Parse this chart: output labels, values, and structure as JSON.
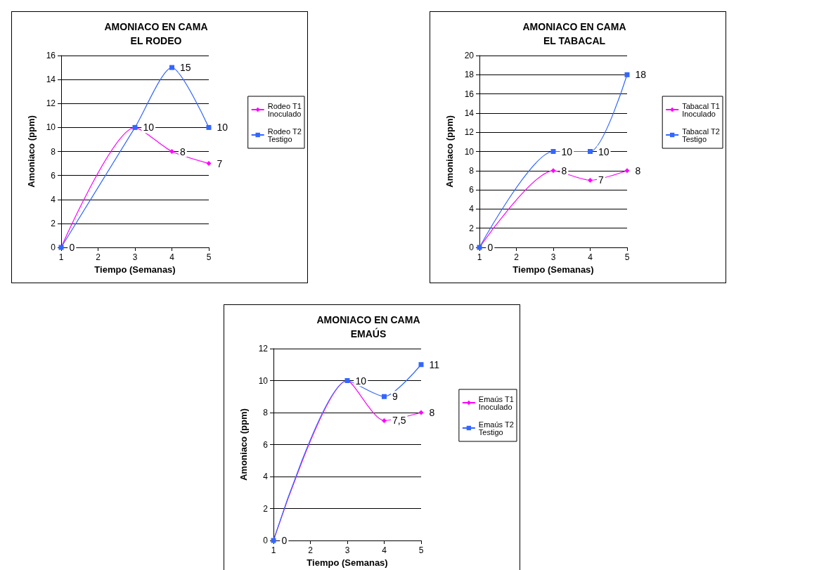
{
  "chart_data": [
    {
      "type": "line",
      "title": "AMONIACO EN CAMA\nEL RODEO",
      "xlabel": "Tiempo (Semanas)",
      "ylabel": "Amoniaco (ppm)",
      "xlim": [
        1,
        5
      ],
      "xticks": [
        1,
        2,
        3,
        4,
        5
      ],
      "ylim": [
        0,
        16
      ],
      "yticks": [
        0,
        2,
        4,
        6,
        8,
        10,
        12,
        14,
        16
      ],
      "grid": "y",
      "legend": "right",
      "series": [
        {
          "name": "Rodeo T1\nInoculado",
          "color": "#ff00ff",
          "marker": "diamond",
          "x": [
            1,
            3,
            4,
            5
          ],
          "values": [
            0,
            10,
            8,
            7
          ],
          "value_labels": [
            null,
            null,
            "8",
            "7"
          ]
        },
        {
          "name": "Rodeo T2\nTestigo",
          "color": "#3366ff",
          "marker": "square",
          "x": [
            1,
            3,
            4,
            5
          ],
          "values": [
            0,
            10,
            15,
            10
          ],
          "value_labels": [
            "0",
            "10",
            "15",
            "10"
          ]
        }
      ]
    },
    {
      "type": "line",
      "title": "AMONIACO EN CAMA\nEL TABACAL",
      "xlabel": "Tiempo (Semanas)",
      "ylabel": "Amoniaco (ppm)",
      "xlim": [
        1,
        5
      ],
      "xticks": [
        1,
        2,
        3,
        4,
        5
      ],
      "ylim": [
        0,
        20
      ],
      "yticks": [
        0,
        2,
        4,
        6,
        8,
        10,
        12,
        14,
        16,
        18,
        20
      ],
      "grid": "y",
      "legend": "right",
      "series": [
        {
          "name": "Tabacal T1\nInoculado",
          "color": "#ff00ff",
          "marker": "diamond",
          "x": [
            1,
            3,
            4,
            5
          ],
          "values": [
            0,
            8,
            7,
            8
          ],
          "value_labels": [
            null,
            "8",
            "7",
            "8"
          ]
        },
        {
          "name": "Tabacal T2\nTestigo",
          "color": "#3366ff",
          "marker": "square",
          "x": [
            1,
            3,
            4,
            5
          ],
          "values": [
            0,
            10,
            10,
            18
          ],
          "value_labels": [
            "0",
            "10",
            "10",
            "18"
          ]
        }
      ]
    },
    {
      "type": "line",
      "title": "AMONIACO EN CAMA\nEMAÚS",
      "xlabel": "Tiempo (Semanas)",
      "ylabel": "Amoniaco (ppm)",
      "xlim": [
        1,
        5
      ],
      "xticks": [
        1,
        2,
        3,
        4,
        5
      ],
      "ylim": [
        0,
        12
      ],
      "yticks": [
        0,
        2,
        4,
        6,
        8,
        10,
        12
      ],
      "grid": "y",
      "legend": "right",
      "series": [
        {
          "name": "Emaús T1\nInoculado",
          "color": "#ff00ff",
          "marker": "diamond",
          "x": [
            1,
            3,
            4,
            5
          ],
          "values": [
            0,
            10,
            7.5,
            8
          ],
          "value_labels": [
            null,
            null,
            "7,5",
            "8"
          ]
        },
        {
          "name": "Emaús T2\nTestigo",
          "color": "#3366ff",
          "marker": "square",
          "x": [
            1,
            3,
            4,
            5
          ],
          "values": [
            0,
            10,
            9,
            11
          ],
          "value_labels": [
            "0",
            "10",
            "9",
            "11"
          ]
        }
      ]
    }
  ]
}
